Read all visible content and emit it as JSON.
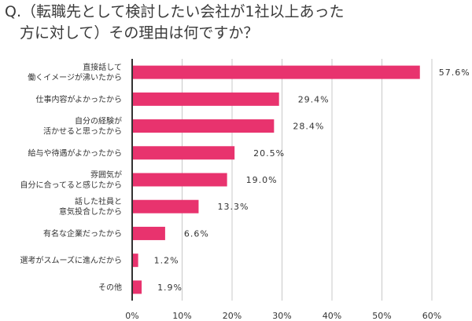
{
  "title_line1": "Q.（転職先として検討したい会社が1社以上あった",
  "title_line2": "　方に対して）その理由は何ですか？",
  "chart_data": {
    "type": "bar",
    "orientation": "horizontal",
    "title": "Q.（転職先として検討したい会社が1社以上あった方に対して）その理由は何ですか？",
    "categories": [
      [
        "直接話して",
        "働くイメージが沸いたから"
      ],
      [
        "仕事内容がよかったから"
      ],
      [
        "自分の経験が",
        "活かせると思ったから"
      ],
      [
        "給与や待遇がよかったから"
      ],
      [
        "雰囲気が",
        "自分に合ってると感じたから"
      ],
      [
        "話した社員と",
        "意気投合したから"
      ],
      [
        "有名な企業だったから"
      ],
      [
        "選考がスムーズに進んだから"
      ],
      [
        "その他"
      ]
    ],
    "values": [
      57.6,
      29.4,
      28.4,
      20.5,
      19.0,
      13.3,
      6.6,
      1.2,
      1.9
    ],
    "value_labels": [
      "57.6%",
      "29.4%",
      "28.4%",
      "20.5%",
      "19.0%",
      "13.3%",
      "6.6%",
      "1.2%",
      "1.9%"
    ],
    "xlim": [
      0,
      60
    ],
    "xticks": [
      "0%",
      "10%",
      "20%",
      "30%",
      "40%",
      "50%",
      "60%"
    ],
    "grid": true,
    "bar_color": "#e8336e"
  }
}
